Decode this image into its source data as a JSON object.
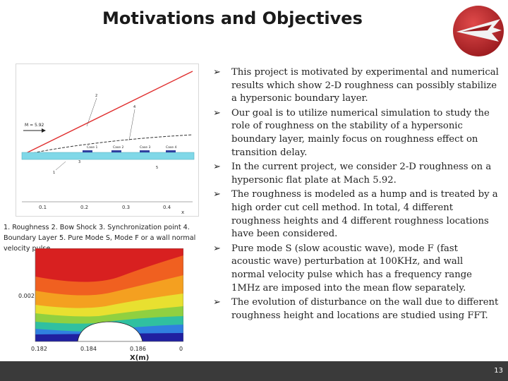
{
  "slide": {
    "title": "Motivations and Objectives",
    "page_number": "13"
  },
  "figure1": {
    "mach_label": "M = 5.92",
    "labels": [
      "1",
      "2",
      "3",
      "4",
      "5"
    ],
    "cases": [
      "Case 1",
      "Case 2",
      "Case 3",
      "Case 4"
    ],
    "x_ticks": [
      "0.1",
      "0.2",
      "0.3",
      "0.4"
    ],
    "x_axis_label": "x"
  },
  "caption": "1. Roughness 2. Bow Shock 3. Synchronization point 4. Boundary Layer 5. Pure Mode S, Mode F or a wall normal velocity pulse",
  "figure2": {
    "y_tick": "0.002",
    "x_ticks": [
      "0.182",
      "0.184",
      "0.186",
      "0"
    ],
    "x_axis_label": "X(m)"
  },
  "bullets": [
    "This project is motivated by experimental and numerical results which show 2-D roughness can possibly stabilize a hypersonic boundary layer.",
    "Our goal is to utilize numerical simulation to study the role of roughness on the stability of a hypersonic boundary layer, mainly focus on roughness effect on transition delay.",
    "In the current project, we consider 2-D roughness on a hypersonic flat plate at Mach 5.92.",
    "The roughness is modeled as a hump and is treated by a high order cut cell method. In total, 4 different roughness heights and 4 different roughness locations have been considered.",
    "Pure mode S (slow acoustic wave), mode F (fast acoustic wave) perturbation at 100KHz, and wall normal velocity pulse which has a frequency range 1MHz are imposed into the mean flow separately.",
    "The evolution of disturbance on the wall due to different roughness height and locations are studied using FFT."
  ],
  "colors": {
    "logo_red": "#c0282d",
    "footer": "#3a3a3a",
    "shock_line": "#e03030",
    "wall_bar": "#80d8e8"
  }
}
